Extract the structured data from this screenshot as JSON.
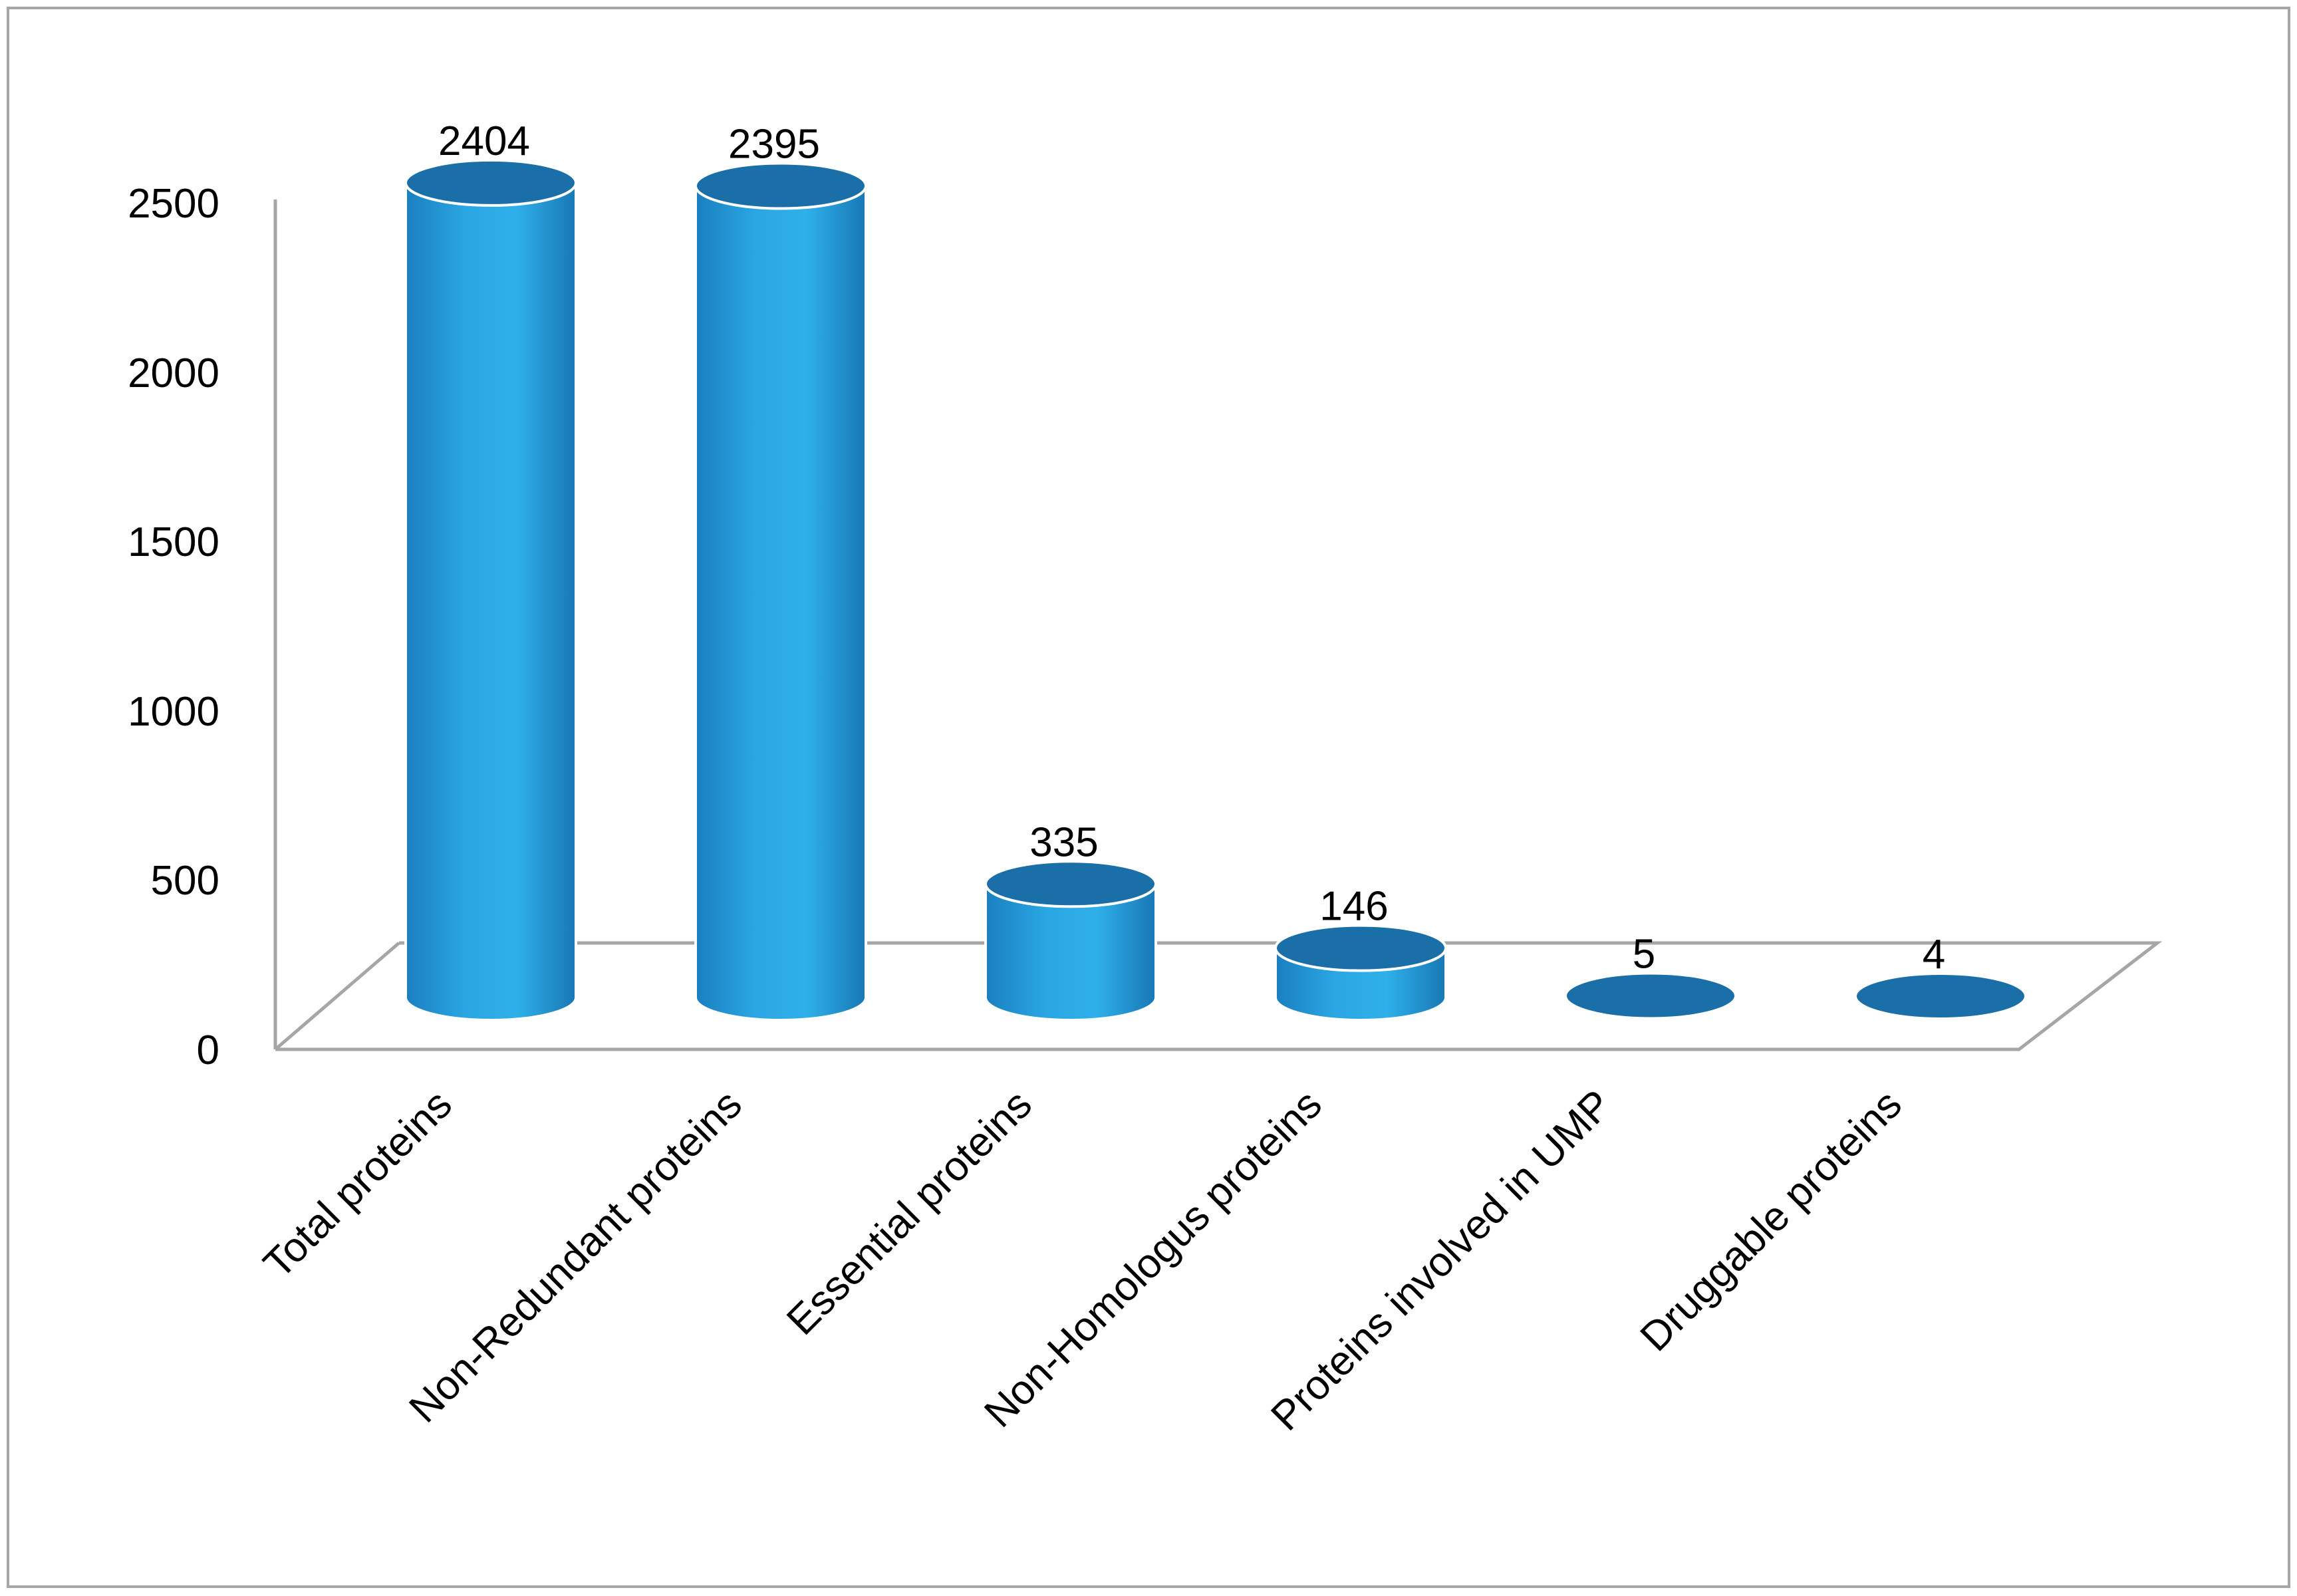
{
  "chart_data": {
    "type": "bar",
    "style": "3d-cylinder",
    "categories": [
      "Total proteins",
      "Non-Redundant proteins",
      "Essential proteins",
      "Non-Homologus proteins",
      "Proteins involved in UMP",
      "Druggable proteins"
    ],
    "values": [
      2404,
      2395,
      335,
      146,
      5,
      4
    ],
    "data_labels": [
      "2404",
      "2395",
      "335",
      "146",
      "5",
      "4"
    ],
    "y_ticks": [
      "0",
      "500",
      "1000",
      "1500",
      "2000",
      "2500"
    ],
    "ylim": [
      0,
      2500
    ],
    "grid": false,
    "legend": "none",
    "title": "",
    "xlabel": "",
    "ylabel": "",
    "colors": {
      "bar_body": "#29a3e0",
      "bar_dark": "#1a78b5",
      "bar_top": "#1b6fa8",
      "axis": "#a6a6a6"
    }
  }
}
